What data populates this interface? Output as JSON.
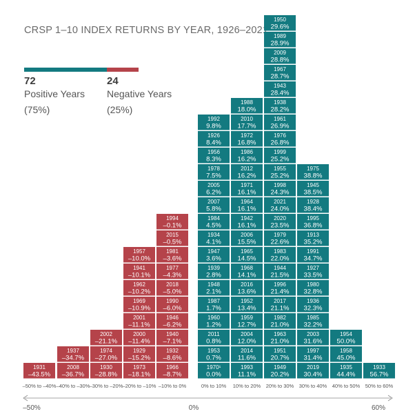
{
  "title": "CRSP 1–10 INDEX RETURNS BY YEAR, 1926–2021",
  "legend": {
    "positive": {
      "count": "72",
      "label": "Positive Years",
      "pct": "(75%)",
      "color": "#137a80"
    },
    "negative": {
      "count": "24",
      "label": "Negative Years",
      "pct": "(25%)",
      "color": "#b5434a"
    }
  },
  "chart_data": {
    "type": "histogram",
    "title": "CRSP 1–10 INDEX RETURNS BY YEAR, 1926–2021",
    "axis": {
      "left_label": "–50%",
      "center_label": "0%",
      "right_label": "60%"
    },
    "bins": [
      {
        "label": "–50% to –40%",
        "sign": "neg",
        "cells": [
          [
            "1931",
            "–43.5%"
          ]
        ]
      },
      {
        "label": "–40% to –30%",
        "sign": "neg",
        "cells": [
          [
            "2008",
            "–36.7%"
          ],
          [
            "1937",
            "–34.7%"
          ]
        ]
      },
      {
        "label": "–30% to –20%",
        "sign": "neg",
        "cells": [
          [
            "1930",
            "–28.8%"
          ],
          [
            "1974",
            "–27.0%"
          ],
          [
            "2002",
            "–21.1%"
          ]
        ]
      },
      {
        "label": "–20% to –10%",
        "sign": "neg",
        "cells": [
          [
            "1973",
            "–18.1%"
          ],
          [
            "1929",
            "–15.2%"
          ],
          [
            "2000",
            "–11.4%"
          ],
          [
            "2001",
            "–11.1%"
          ],
          [
            "1969",
            "–10.9%"
          ],
          [
            "1962",
            "–10.2%"
          ],
          [
            "1941",
            "–10.1%"
          ],
          [
            "1957",
            "–10.0%"
          ]
        ]
      },
      {
        "label": "–10% to 0%",
        "sign": "neg",
        "cells": [
          [
            "1966",
            "–8.7%"
          ],
          [
            "1932",
            "–8.6%"
          ],
          [
            "1940",
            "–7.1%"
          ],
          [
            "1946",
            "–6.2%"
          ],
          [
            "1990",
            "–6.0%"
          ],
          [
            "2018",
            "–5.0%"
          ],
          [
            "1977",
            "–4.3%"
          ],
          [
            "1981",
            "–3.6%"
          ],
          [
            "2015",
            "–0.5%"
          ],
          [
            "1994",
            "–0.1%"
          ]
        ]
      },
      {
        "label": "0% to 10%",
        "sign": "pos",
        "cells": [
          [
            "1970¹",
            "0.0%"
          ],
          [
            "1953",
            "0.7%"
          ],
          [
            "2011",
            "0.8%"
          ],
          [
            "1960",
            "1.2%"
          ],
          [
            "1987",
            "1.7%"
          ],
          [
            "1948",
            "2.1%"
          ],
          [
            "1939",
            "2.8%"
          ],
          [
            "1947",
            "3.6%"
          ],
          [
            "1934",
            "4.1%"
          ],
          [
            "1984",
            "4.5%"
          ],
          [
            "2007",
            "5.8%"
          ],
          [
            "2005",
            "6.2%"
          ],
          [
            "1978",
            "7.5%"
          ],
          [
            "1956",
            "8.3%"
          ],
          [
            "1926",
            "8.4%"
          ],
          [
            "1992",
            "9.8%"
          ]
        ]
      },
      {
        "label": "10% to 20%",
        "sign": "pos",
        "cells": [
          [
            "1993",
            "11.1%"
          ],
          [
            "2014",
            "11.6%"
          ],
          [
            "2004",
            "12.0%"
          ],
          [
            "1959",
            "12.7%"
          ],
          [
            "1952",
            "13.4%"
          ],
          [
            "2016",
            "13.6%"
          ],
          [
            "1968",
            "14.1%"
          ],
          [
            "1965",
            "14.5%"
          ],
          [
            "2006",
            "15.5%"
          ],
          [
            "1942",
            "16.1%"
          ],
          [
            "1964",
            "16.1%"
          ],
          [
            "1971",
            "16.1%"
          ],
          [
            "2012",
            "16.2%"
          ],
          [
            "1986",
            "16.2%"
          ],
          [
            "1972",
            "16.8%"
          ],
          [
            "2010",
            "17.7%"
          ],
          [
            "1988",
            "18.0%"
          ]
        ]
      },
      {
        "label": "20% to 30%",
        "sign": "pos",
        "cells": [
          [
            "1949",
            "20.2%"
          ],
          [
            "1951",
            "20.7%"
          ],
          [
            "1963",
            "21.0%"
          ],
          [
            "1982",
            "21.0%"
          ],
          [
            "2017",
            "21.1%"
          ],
          [
            "1996",
            "21.4%"
          ],
          [
            "1944",
            "21.5%"
          ],
          [
            "1983",
            "22.0%"
          ],
          [
            "1979",
            "22.6%"
          ],
          [
            "2020",
            "23.5%"
          ],
          [
            "2021",
            "24.0%"
          ],
          [
            "1998",
            "24.3%"
          ],
          [
            "1955",
            "25.2%"
          ],
          [
            "1999",
            "25.2%"
          ],
          [
            "1976",
            "26.8%"
          ],
          [
            "1961",
            "26.9%"
          ],
          [
            "1938",
            "28.2%"
          ],
          [
            "1943",
            "28.4%"
          ],
          [
            "1967",
            "28.7%"
          ],
          [
            "2009",
            "28.8%"
          ],
          [
            "1989",
            "28.9%"
          ],
          [
            "1950",
            "29.6%"
          ]
        ]
      },
      {
        "label": "30% to 40%",
        "sign": "pos",
        "cells": [
          [
            "2019",
            "30.4%"
          ],
          [
            "1997",
            "31.4%"
          ],
          [
            "2003",
            "31.6%"
          ],
          [
            "1985",
            "32.2%"
          ],
          [
            "1936",
            "32.3%"
          ],
          [
            "1980",
            "32.8%"
          ],
          [
            "1927",
            "33.5%"
          ],
          [
            "1991",
            "34.7%"
          ],
          [
            "1913",
            "35.2%"
          ],
          [
            "1995",
            "36.8%"
          ],
          [
            "1928",
            "38.4%"
          ],
          [
            "1945",
            "38.5%"
          ],
          [
            "1975",
            "38.8%"
          ]
        ]
      },
      {
        "label": "40% to 50%",
        "sign": "pos",
        "cells": [
          [
            "1935",
            "44.4%"
          ],
          [
            "1958",
            "45.0%"
          ],
          [
            "1954",
            "50.0%"
          ]
        ]
      },
      {
        "label": "50% to 60%",
        "sign": "pos",
        "cells": [
          [
            "1933",
            "56.7%"
          ]
        ]
      }
    ]
  }
}
